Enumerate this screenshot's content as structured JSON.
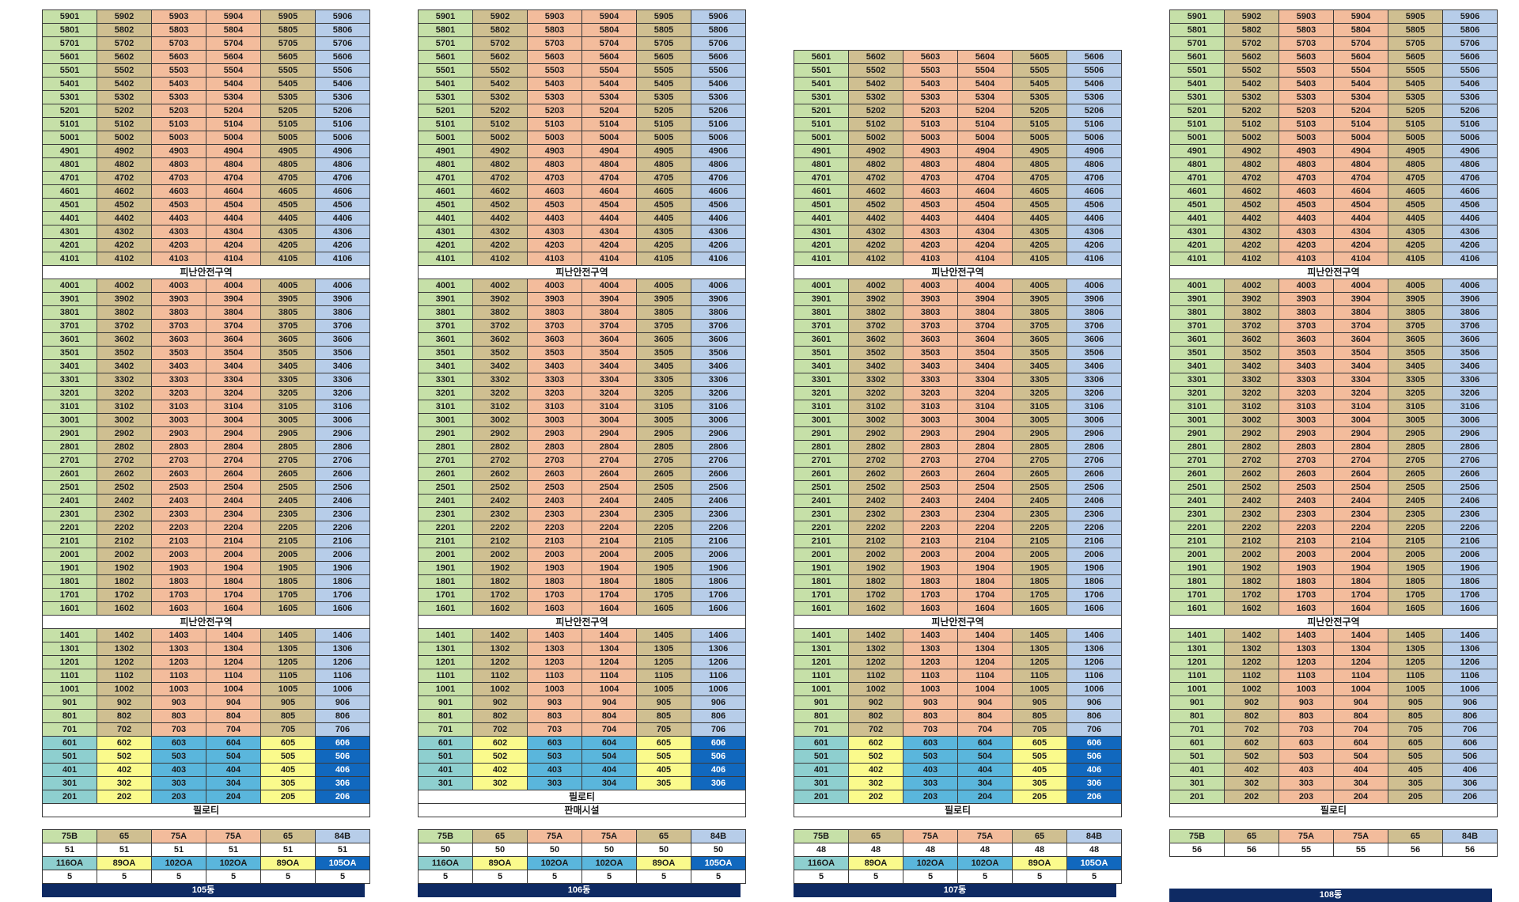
{
  "palette": {
    "green": "#c6e0a8",
    "tan": "#cfbf91",
    "salmon": "#f3bc9c",
    "blue": "#b7cde9",
    "teal": "#8ecfcf",
    "yellow": "#fafa8c",
    "sky": "#5ab6dc",
    "darkblue": "#1168be",
    "white": "#ffffff"
  },
  "refuge_label": "피난안전구역",
  "piloti_label": "필로티",
  "commercial_label": "판매시설",
  "buildings": [
    {
      "name": "105동",
      "top_floor": 59,
      "lowest_floor": 2,
      "bottom_labels": [
        "필로티"
      ],
      "types": [
        "75B",
        "65",
        "75A",
        "75A",
        "65",
        "84B"
      ],
      "counts": [
        "51",
        "51",
        "51",
        "51",
        "51",
        "51"
      ],
      "subtypes": [
        "116OA",
        "89OA",
        "102OA",
        "102OA",
        "89OA",
        "105OA"
      ],
      "subcounts": [
        "5",
        "5",
        "5",
        "5",
        "5",
        "5"
      ],
      "lower_scheme": "colored",
      "footer": "105동"
    },
    {
      "name": "106동",
      "top_floor": 59,
      "lowest_floor": 3,
      "bottom_labels": [
        "필로티",
        "판매시설"
      ],
      "types": [
        "75B",
        "65",
        "75A",
        "75A",
        "65",
        "84B"
      ],
      "counts": [
        "50",
        "50",
        "50",
        "50",
        "50",
        "50"
      ],
      "subtypes": [
        "116OA",
        "89OA",
        "102OA",
        "102OA",
        "89OA",
        "105OA"
      ],
      "subcounts": [
        "5",
        "5",
        "5",
        "5",
        "5",
        "5"
      ],
      "lower_scheme": "colored",
      "footer": "106동"
    },
    {
      "name": "107동",
      "top_floor": 56,
      "lowest_floor": 2,
      "bottom_labels": [
        "필로티"
      ],
      "types": [
        "75B",
        "65",
        "75A",
        "75A",
        "65",
        "84B"
      ],
      "counts": [
        "48",
        "48",
        "48",
        "48",
        "48",
        "48"
      ],
      "subtypes": [
        "116OA",
        "89OA",
        "102OA",
        "102OA",
        "89OA",
        "105OA"
      ],
      "subcounts": [
        "5",
        "5",
        "5",
        "5",
        "5",
        "5"
      ],
      "lower_scheme": "colored",
      "footer": "107동"
    },
    {
      "name": "108동",
      "top_floor": 59,
      "lowest_floor": 2,
      "bottom_labels": [
        "필로티"
      ],
      "types": [
        "75B",
        "65",
        "75A",
        "75A",
        "65",
        "84B"
      ],
      "counts": [
        "56",
        "56",
        "55",
        "55",
        "56",
        "56"
      ],
      "subtypes": [],
      "subcounts": [],
      "lower_scheme": "plain",
      "footer": "108동"
    }
  ]
}
